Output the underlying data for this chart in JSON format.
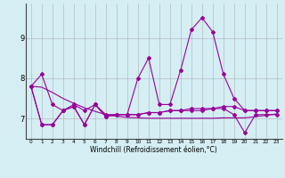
{
  "x": [
    0,
    1,
    2,
    3,
    4,
    5,
    6,
    7,
    8,
    9,
    10,
    11,
    12,
    13,
    14,
    15,
    16,
    17,
    18,
    19,
    20,
    21,
    22,
    23
  ],
  "y_spiky": [
    7.8,
    8.1,
    7.35,
    7.2,
    7.35,
    7.2,
    7.35,
    7.1,
    7.1,
    7.1,
    8.0,
    8.5,
    7.35,
    7.35,
    8.2,
    9.2,
    9.5,
    9.15,
    8.1,
    7.5,
    7.2,
    7.2,
    7.2,
    7.2
  ],
  "y_flat_upper": [
    7.8,
    6.85,
    6.85,
    7.2,
    7.3,
    6.85,
    7.35,
    7.05,
    7.1,
    7.1,
    7.1,
    7.15,
    7.15,
    7.2,
    7.2,
    7.25,
    7.25,
    7.25,
    7.3,
    7.3,
    7.2,
    7.2,
    7.2,
    7.2
  ],
  "y_flat_lower": [
    7.8,
    6.85,
    6.85,
    7.2,
    7.3,
    6.85,
    7.35,
    7.05,
    7.1,
    7.1,
    7.1,
    7.15,
    7.15,
    7.2,
    7.2,
    7.2,
    7.2,
    7.25,
    7.25,
    7.1,
    6.65,
    7.1,
    7.1,
    7.1
  ],
  "y_diagonal": [
    7.8,
    7.78,
    7.65,
    7.5,
    7.38,
    7.27,
    7.18,
    7.1,
    7.06,
    7.03,
    7.02,
    7.01,
    7.01,
    7.01,
    7.01,
    7.01,
    7.01,
    7.01,
    7.02,
    7.02,
    7.02,
    7.05,
    7.08,
    7.12
  ],
  "xticks": [
    0,
    1,
    2,
    3,
    4,
    5,
    6,
    7,
    8,
    9,
    10,
    11,
    12,
    13,
    14,
    15,
    16,
    17,
    18,
    19,
    20,
    21,
    22,
    23
  ],
  "yticks": [
    7,
    8,
    9
  ],
  "xlim": [
    -0.5,
    23.5
  ],
  "ylim": [
    6.5,
    9.85
  ],
  "xlabel": "Windchill (Refroidissement éolien,°C)",
  "line_color": "#990099",
  "bg_color": "#d4eef4",
  "grid_color": "#b0b0b0"
}
